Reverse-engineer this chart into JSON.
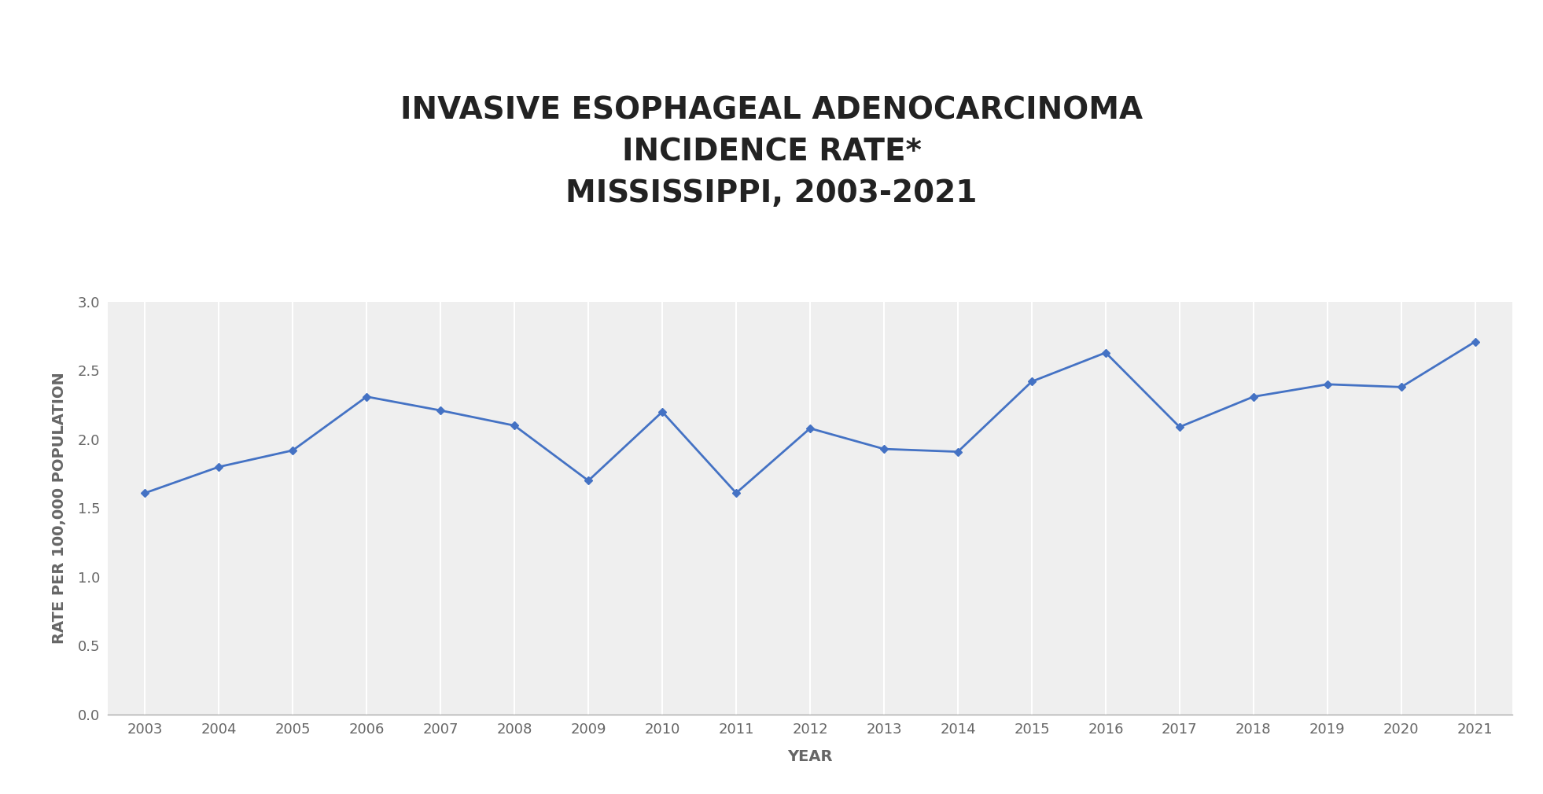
{
  "title_line1": "INVASIVE ESOPHAGEAL ADENOCARCINOMA",
  "title_line2": "INCIDENCE RATE*",
  "title_line3": "MISSISSIPPI, 2003-2021",
  "xlabel": "YEAR",
  "ylabel": "RATE PER 100,000 POPULATION",
  "years": [
    2003,
    2004,
    2005,
    2006,
    2007,
    2008,
    2009,
    2010,
    2011,
    2012,
    2013,
    2014,
    2015,
    2016,
    2017,
    2018,
    2019,
    2020,
    2021
  ],
  "values": [
    1.61,
    1.8,
    1.92,
    2.31,
    2.21,
    2.1,
    1.7,
    2.2,
    1.61,
    2.08,
    1.93,
    1.91,
    2.42,
    2.63,
    2.09,
    2.31,
    2.4,
    2.38,
    2.71
  ],
  "line_color": "#4472C4",
  "marker": "D",
  "marker_size": 5,
  "line_width": 2.0,
  "ylim": [
    0.0,
    3.0
  ],
  "yticks": [
    0.0,
    0.5,
    1.0,
    1.5,
    2.0,
    2.5,
    3.0
  ],
  "background_color": "#ffffff",
  "plot_bg_color": "#efefef",
  "grid_color": "#ffffff",
  "title_fontsize": 28,
  "axis_label_fontsize": 14,
  "tick_fontsize": 13,
  "title_fontweight": "bold",
  "title_color": "#222222",
  "tick_color": "#666666",
  "label_color": "#666666"
}
